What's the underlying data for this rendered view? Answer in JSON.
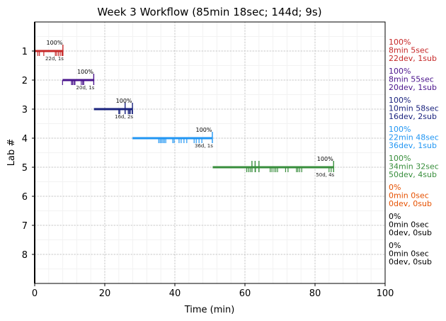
{
  "chart_data": {
    "type": "timeline",
    "title": "Week 3 Workflow (85min 18sec; 144d; 9s)",
    "xlabel": "Time (min)",
    "ylabel": "Lab #",
    "xlim": [
      0,
      100
    ],
    "ylim": [
      9,
      0
    ],
    "xticks": [
      0,
      20,
      40,
      60,
      80,
      100
    ],
    "yticks": [
      1,
      2,
      3,
      4,
      5,
      6,
      7,
      8
    ],
    "grid": true,
    "labs": [
      {
        "lab": 1,
        "color": "#c62828",
        "start": 0,
        "end": 8.08,
        "pct": "100%",
        "counts": "22d, 1s",
        "summary": [
          "100%",
          "8min 5sec",
          "22dev, 1sub"
        ],
        "dev": [
          0.9,
          1.35,
          2.6,
          5.9,
          6.3,
          6.8,
          7.3,
          7.8
        ],
        "sub": [
          8.05
        ]
      },
      {
        "lab": 2,
        "color": "#4a148c",
        "start": 7.95,
        "end": 16.87,
        "pct": "100%",
        "counts": "20d, 1s",
        "summary": [
          "100%",
          "8min 55sec",
          "20dev, 1sub"
        ],
        "dev": [
          7.95,
          10.5,
          10.8,
          11.2,
          11.5,
          13.3,
          13.7,
          14.0
        ],
        "sub": [
          16.85
        ]
      },
      {
        "lab": 3,
        "color": "#1a237e",
        "start": 16.9,
        "end": 27.9,
        "pct": "100%",
        "counts": "16d, 2s",
        "summary": [
          "100%",
          "10min 58sec",
          "16dev, 2sub"
        ],
        "dev": [
          24.0,
          24.3,
          25.8,
          26.7,
          27.0,
          27.3,
          27.8
        ],
        "sub": [
          25.8,
          27.9
        ]
      },
      {
        "lab": 4,
        "color": "#2196f3",
        "start": 27.9,
        "end": 50.7,
        "pct": "100%",
        "counts": "36d, 1s",
        "summary": [
          "100%",
          "22min 48sec",
          "36dev, 1sub"
        ],
        "dev": [
          35.4,
          35.8,
          36.2,
          36.6,
          37.0,
          37.4,
          39.4,
          39.8,
          41.2,
          41.8,
          42.6,
          43.4,
          45.5,
          46.1,
          46.9,
          47.7
        ],
        "sub": [
          50.7
        ]
      },
      {
        "lab": 5,
        "color": "#388e3c",
        "start": 50.8,
        "end": 85.3,
        "pct": "100%",
        "counts": "50d, 4s",
        "summary": [
          "100%",
          "34min 32sec",
          "50dev, 4sub"
        ],
        "dev": [
          60.5,
          61.0,
          61.5,
          62.0,
          63.0,
          64.0,
          67.2,
          67.7,
          68.3,
          68.8,
          69.3,
          71.6,
          72.3,
          74.7,
          75.1,
          75.6,
          76.2,
          84.0,
          84.6
        ],
        "sub": [
          62.0,
          62.9,
          64.0,
          85.3
        ]
      },
      {
        "lab": 6,
        "color": "#e65100",
        "summary": [
          "0%",
          "0min 0sec",
          "0dev, 0sub"
        ]
      },
      {
        "lab": 7,
        "color": "#000000",
        "summary": [
          "0%",
          "0min 0sec",
          "0dev, 0sub"
        ]
      },
      {
        "lab": 8,
        "color": "#000000",
        "summary": [
          "0%",
          "0min 0sec",
          "0dev, 0sub"
        ]
      }
    ]
  }
}
